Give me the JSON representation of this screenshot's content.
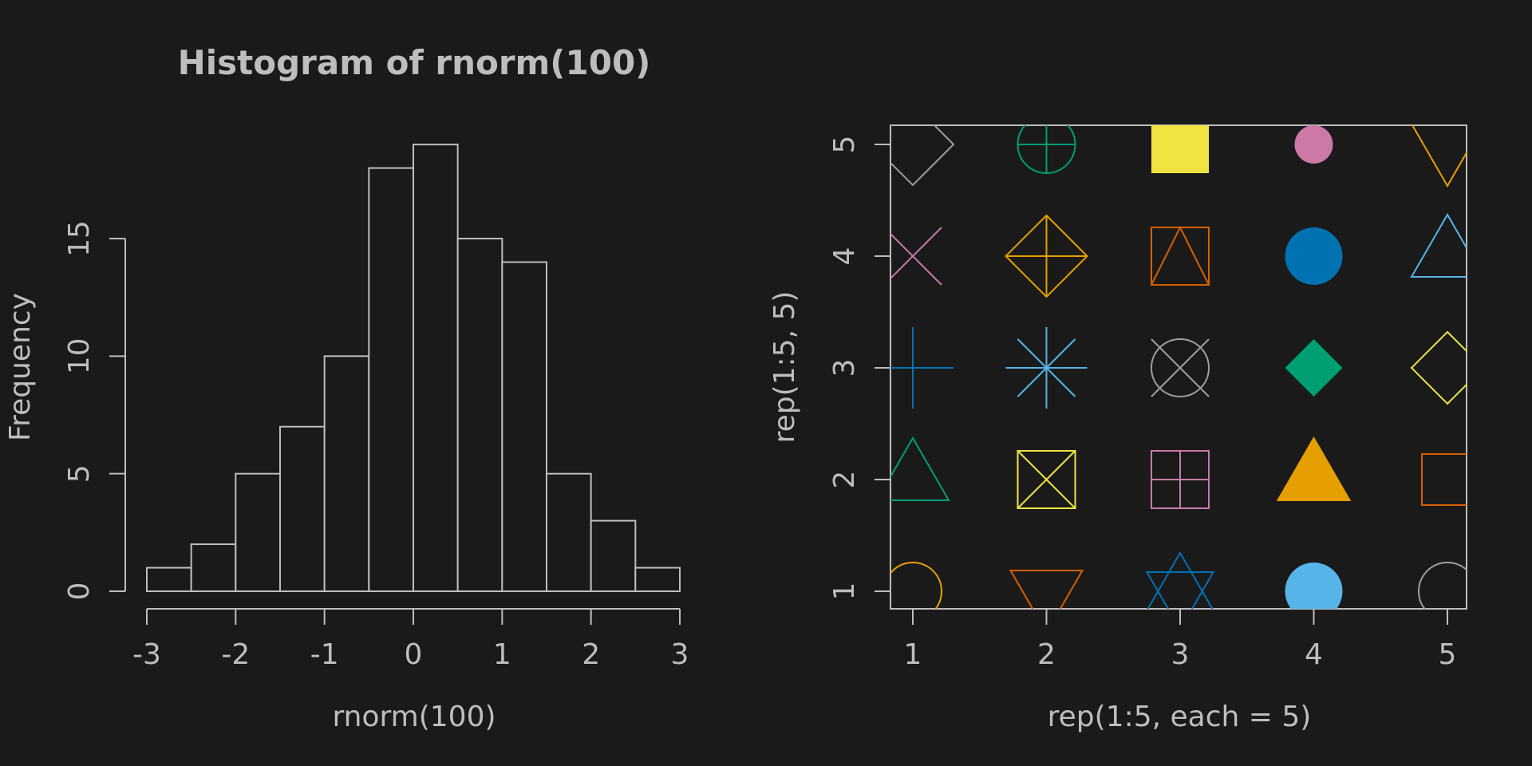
{
  "chart_data": [
    {
      "type": "bar",
      "title": "Histogram of rnorm(100)",
      "xlabel": "rnorm(100)",
      "ylabel": "Frequency",
      "bins": [
        [
          -3,
          -2.5
        ],
        [
          -2.5,
          -2
        ],
        [
          -2,
          -1.5
        ],
        [
          -1.5,
          -1
        ],
        [
          -1,
          -0.5
        ],
        [
          -0.5,
          0
        ],
        [
          0,
          0.5
        ],
        [
          0.5,
          1
        ],
        [
          1,
          1.5
        ],
        [
          1.5,
          2
        ],
        [
          2,
          2.5
        ],
        [
          2.5,
          3
        ]
      ],
      "values": [
        1,
        2,
        5,
        7,
        10,
        18,
        19,
        15,
        14,
        5,
        3,
        1
      ],
      "xlim": [
        -3,
        3
      ],
      "ylim": [
        0,
        19
      ],
      "xticks": [
        "-3",
        "-2",
        "-1",
        "0",
        "1",
        "2",
        "3"
      ],
      "yticks": [
        "0",
        "5",
        "10",
        "15"
      ],
      "style": {
        "fill": "#1a1a1a",
        "stroke": "#bdbdbd"
      }
    },
    {
      "type": "scatter",
      "title": "",
      "xlabel": "rep(1:5, each = 5)",
      "ylabel": "rep(1:5, 5)",
      "xlim": [
        1,
        5
      ],
      "ylim": [
        1,
        5
      ],
      "xticks": [
        "1",
        "2",
        "3",
        "4",
        "5"
      ],
      "yticks": [
        "1",
        "2",
        "3",
        "4",
        "5"
      ],
      "points": [
        {
          "x": 1,
          "y": 1,
          "pch": 1,
          "color": "#e69f00"
        },
        {
          "x": 1,
          "y": 2,
          "pch": 2,
          "color": "#009e73"
        },
        {
          "x": 1,
          "y": 3,
          "pch": 3,
          "color": "#0072b2"
        },
        {
          "x": 1,
          "y": 4,
          "pch": 4,
          "color": "#cc79a7"
        },
        {
          "x": 1,
          "y": 5,
          "pch": 5,
          "color": "#9e9e9e"
        },
        {
          "x": 2,
          "y": 1,
          "pch": 6,
          "color": "#d55e00"
        },
        {
          "x": 2,
          "y": 2,
          "pch": 7,
          "color": "#f0e442"
        },
        {
          "x": 2,
          "y": 3,
          "pch": 8,
          "color": "#56b4e9"
        },
        {
          "x": 2,
          "y": 4,
          "pch": 9,
          "color": "#e69f00"
        },
        {
          "x": 2,
          "y": 5,
          "pch": 10,
          "color": "#009e73"
        },
        {
          "x": 3,
          "y": 1,
          "pch": 11,
          "color": "#0072b2"
        },
        {
          "x": 3,
          "y": 2,
          "pch": 12,
          "color": "#cc79a7"
        },
        {
          "x": 3,
          "y": 3,
          "pch": 13,
          "color": "#9e9e9e"
        },
        {
          "x": 3,
          "y": 4,
          "pch": 14,
          "color": "#d55e00"
        },
        {
          "x": 3,
          "y": 5,
          "pch": 15,
          "color": "#f0e442"
        },
        {
          "x": 4,
          "y": 1,
          "pch": 16,
          "color": "#56b4e9"
        },
        {
          "x": 4,
          "y": 2,
          "pch": 17,
          "color": "#e69f00"
        },
        {
          "x": 4,
          "y": 3,
          "pch": 18,
          "color": "#009e73"
        },
        {
          "x": 4,
          "y": 4,
          "pch": 19,
          "color": "#0072b2"
        },
        {
          "x": 4,
          "y": 5,
          "pch": 20,
          "color": "#cc79a7"
        },
        {
          "x": 5,
          "y": 1,
          "pch": 21,
          "color": "#9e9e9e"
        },
        {
          "x": 5,
          "y": 2,
          "pch": 22,
          "color": "#d55e00"
        },
        {
          "x": 5,
          "y": 3,
          "pch": 23,
          "color": "#f0e442"
        },
        {
          "x": 5,
          "y": 4,
          "pch": 24,
          "color": "#56b4e9"
        },
        {
          "x": 5,
          "y": 5,
          "pch": 25,
          "color": "#e69f00"
        }
      ],
      "style": {
        "frame": "#bdbdbd"
      }
    }
  ]
}
